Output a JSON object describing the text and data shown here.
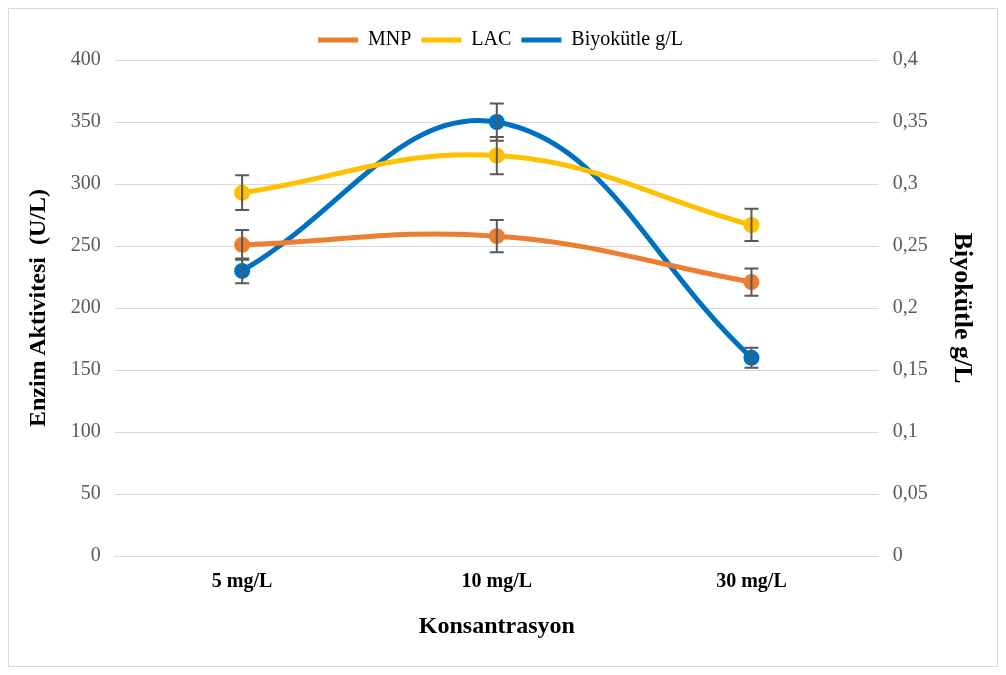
{
  "chart_data": {
    "type": "line",
    "xlabel": "Konsantrasyon",
    "ylabel": "Enzim Aktivitesi  (U/L)",
    "y2label": "Biyokütle g/L",
    "categories": [
      "5 mg/L",
      "10 mg/L",
      "30 mg/L"
    ],
    "series": [
      {
        "name": "MNP",
        "color": "#ed7d31",
        "values": [
          251,
          258,
          221
        ],
        "errors": [
          12,
          13,
          11
        ]
      },
      {
        "name": "LAC",
        "color": "#ffc000",
        "values": [
          293,
          323,
          267
        ],
        "errors": [
          14,
          15,
          13
        ]
      },
      {
        "name": "Biyokütle g/L",
        "color": "#0070c0",
        "axis": "y2",
        "values": [
          0.23,
          0.35,
          0.16
        ],
        "errors": [
          0.01,
          0.015,
          0.008
        ]
      }
    ],
    "ylim": [
      0,
      400
    ],
    "yticks": [
      0,
      50,
      100,
      150,
      200,
      250,
      300,
      350,
      400
    ],
    "y2lim": [
      0,
      0.4
    ],
    "y2ticks": [
      {
        "value": 0,
        "label": "0"
      },
      {
        "value": 0.05,
        "label": "0,05"
      },
      {
        "value": 0.1,
        "label": "0,1"
      },
      {
        "value": 0.15,
        "label": "0,15"
      },
      {
        "value": 0.2,
        "label": "0,2"
      },
      {
        "value": 0.25,
        "label": "0,25"
      },
      {
        "value": 0.3,
        "label": "0,3"
      },
      {
        "value": 0.35,
        "label": "0,35"
      },
      {
        "value": 0.4,
        "label": "0,4"
      }
    ],
    "grid": "y",
    "legend": "top",
    "marker": "circle",
    "line_style": "solid"
  }
}
